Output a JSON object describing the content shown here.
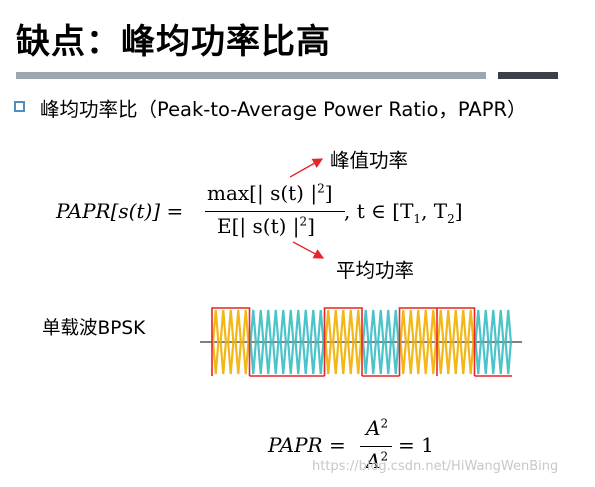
{
  "slide": {
    "title": "缺点：峰均功率比高",
    "bullet": "峰均功率比（Peak-to-Average Power Ratio，PAPR）"
  },
  "formula1": {
    "lhs": "PAPR[s(t)] =",
    "numerator": "max[| s(t) |",
    "num_exp": "2",
    "num_close": "]",
    "denominator": "E[| s(t) |",
    "den_exp": "2",
    "den_close": "]",
    "condition": ",  t ∈ [T",
    "cond_sub1": "1",
    "cond_mid": ", T",
    "cond_sub2": "2",
    "cond_close": "]"
  },
  "annotations": {
    "peak_power": "峰值功率",
    "average_power": "平均功率"
  },
  "bpsk": {
    "label": "单载波BPSK",
    "bits": [
      1,
      0,
      0,
      1,
      0,
      1,
      1,
      0
    ],
    "colors": {
      "high": "#f2b81a",
      "low": "#4cc3c9",
      "envelope": "#e8252a",
      "axis": "#000000"
    }
  },
  "formula2": {
    "lhs": "PAPR =",
    "numerator": "A",
    "num_exp": "2",
    "denominator": "A",
    "den_exp": "2",
    "rhs": "= 1"
  },
  "watermark": "https://blog.csdn.net/HiWangWenBing",
  "colors": {
    "rule_gray": "#9ea6b0",
    "rule_dark": "#3b4149",
    "bullet": "#4e8fbf",
    "arrow": "#e8252a"
  }
}
